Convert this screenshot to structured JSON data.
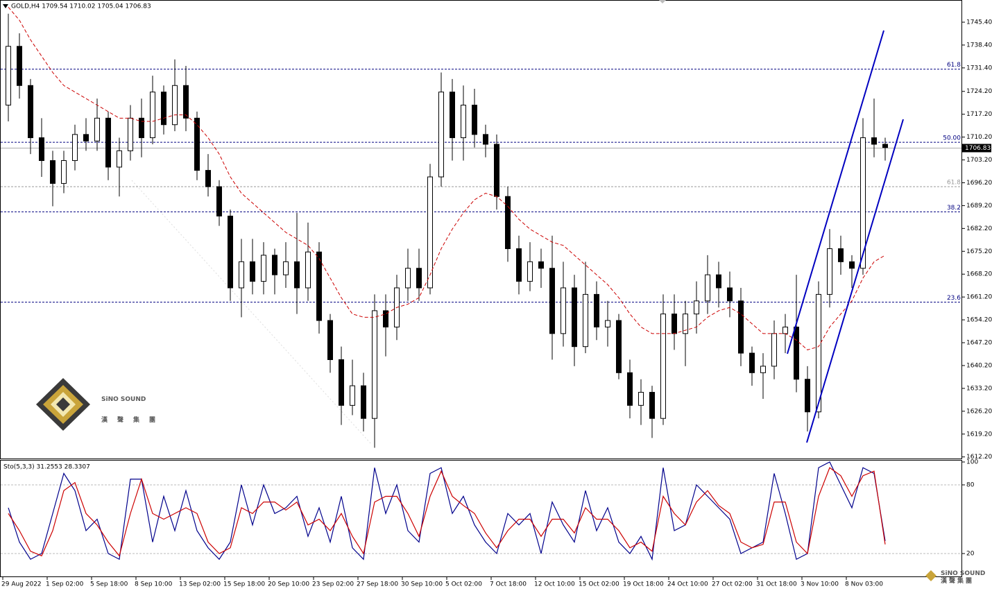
{
  "chart_data": [
    {
      "type": "candlestick",
      "title": "GOLD,H4  1709.54 1710.02 1705.04 1706.83",
      "x_labels": [
        {
          "value": 0,
          "label": "29 Aug 2022"
        },
        {
          "value": 4,
          "label": "1 Sep 02:00"
        },
        {
          "value": 8,
          "label": "5 Sep 18:00"
        },
        {
          "value": 12,
          "label": "8 Sep 10:00"
        },
        {
          "value": 16,
          "label": "13 Sep 02:00"
        },
        {
          "value": 20,
          "label": "15 Sep 18:00"
        },
        {
          "value": 24,
          "label": "20 Sep 10:00"
        },
        {
          "value": 28,
          "label": "23 Sep 02:00"
        },
        {
          "value": 32,
          "label": "27 Sep 18:00"
        },
        {
          "value": 36,
          "label": "30 Sep 10:00"
        },
        {
          "value": 40,
          "label": "5 Oct 02:00"
        },
        {
          "value": 44,
          "label": "7 Oct 18:00"
        },
        {
          "value": 48,
          "label": "12 Oct 10:00"
        },
        {
          "value": 52,
          "label": "15 Oct 02:00"
        },
        {
          "value": 56,
          "label": "19 Oct 18:00"
        },
        {
          "value": 60,
          "label": "24 Oct 10:00"
        },
        {
          "value": 64,
          "label": "27 Oct 02:00"
        },
        {
          "value": 68,
          "label": "31 Oct 18:00"
        },
        {
          "value": 72,
          "label": "3 Nov 10:00"
        },
        {
          "value": 76,
          "label": "8 Nov 03:00"
        }
      ],
      "ohlc": [
        [
          1720,
          1748,
          1715,
          1738
        ],
        [
          1738,
          1742,
          1722,
          1726
        ],
        [
          1726,
          1728,
          1705,
          1710
        ],
        [
          1710,
          1716,
          1698,
          1703
        ],
        [
          1703,
          1706,
          1689,
          1696
        ],
        [
          1696,
          1706,
          1693,
          1703
        ],
        [
          1703,
          1714,
          1700,
          1711
        ],
        [
          1711,
          1716,
          1706,
          1709
        ],
        [
          1709,
          1722,
          1706,
          1716
        ],
        [
          1716,
          1718,
          1697,
          1701
        ],
        [
          1701,
          1710,
          1692,
          1706
        ],
        [
          1706,
          1720,
          1703,
          1716
        ],
        [
          1716,
          1722,
          1704,
          1710
        ],
        [
          1710,
          1729,
          1708,
          1724
        ],
        [
          1724,
          1726,
          1711,
          1714
        ],
        [
          1714,
          1734,
          1712,
          1726
        ],
        [
          1726,
          1732,
          1712,
          1716
        ],
        [
          1716,
          1718,
          1697,
          1700
        ],
        [
          1700,
          1705,
          1692,
          1695
        ],
        [
          1695,
          1697,
          1683,
          1686
        ],
        [
          1686,
          1688,
          1660,
          1664
        ],
        [
          1664,
          1679,
          1655,
          1672
        ],
        [
          1672,
          1679,
          1662,
          1666
        ],
        [
          1666,
          1678,
          1662,
          1674
        ],
        [
          1674,
          1676,
          1662,
          1668
        ],
        [
          1668,
          1678,
          1664,
          1672
        ],
        [
          1672,
          1687,
          1656,
          1664
        ],
        [
          1664,
          1684,
          1660,
          1675
        ],
        [
          1675,
          1678,
          1650,
          1654
        ],
        [
          1654,
          1656,
          1638,
          1642
        ],
        [
          1642,
          1646,
          1622,
          1628
        ],
        [
          1628,
          1642,
          1625,
          1634
        ],
        [
          1634,
          1638,
          1620,
          1624
        ],
        [
          1624,
          1662,
          1615,
          1657
        ],
        [
          1657,
          1662,
          1643,
          1652
        ],
        [
          1652,
          1668,
          1648,
          1664
        ],
        [
          1664,
          1676,
          1660,
          1670
        ],
        [
          1670,
          1676,
          1660,
          1664
        ],
        [
          1664,
          1702,
          1662,
          1698
        ],
        [
          1698,
          1730,
          1695,
          1724
        ],
        [
          1724,
          1728,
          1703,
          1710
        ],
        [
          1710,
          1726,
          1703,
          1720
        ],
        [
          1720,
          1725,
          1707,
          1711
        ],
        [
          1711,
          1714,
          1704,
          1708
        ],
        [
          1708,
          1711,
          1688,
          1692
        ],
        [
          1692,
          1695,
          1672,
          1676
        ],
        [
          1676,
          1680,
          1662,
          1666
        ],
        [
          1666,
          1678,
          1663,
          1672
        ],
        [
          1672,
          1676,
          1664,
          1670
        ],
        [
          1670,
          1680,
          1642,
          1650
        ],
        [
          1650,
          1672,
          1646,
          1664
        ],
        [
          1664,
          1668,
          1640,
          1646
        ],
        [
          1646,
          1672,
          1644,
          1662
        ],
        [
          1662,
          1666,
          1648,
          1652
        ],
        [
          1652,
          1660,
          1646,
          1654
        ],
        [
          1654,
          1656,
          1636,
          1638
        ],
        [
          1638,
          1642,
          1624,
          1628
        ],
        [
          1628,
          1636,
          1622,
          1632
        ],
        [
          1632,
          1634,
          1618,
          1624
        ],
        [
          1624,
          1662,
          1622,
          1656
        ],
        [
          1656,
          1662,
          1645,
          1650
        ],
        [
          1650,
          1660,
          1640,
          1656
        ],
        [
          1656,
          1666,
          1650,
          1660
        ],
        [
          1660,
          1674,
          1656,
          1668
        ],
        [
          1668,
          1672,
          1658,
          1664
        ],
        [
          1664,
          1669,
          1655,
          1660
        ],
        [
          1660,
          1664,
          1640,
          1644
        ],
        [
          1644,
          1646,
          1634,
          1638
        ],
        [
          1638,
          1644,
          1630,
          1640
        ],
        [
          1640,
          1654,
          1636,
          1650
        ],
        [
          1650,
          1656,
          1644,
          1652
        ],
        [
          1652,
          1668,
          1632,
          1636
        ],
        [
          1636,
          1640,
          1620,
          1626
        ],
        [
          1626,
          1666,
          1624,
          1662
        ],
        [
          1662,
          1682,
          1658,
          1676
        ],
        [
          1676,
          1680,
          1668,
          1672
        ],
        [
          1672,
          1674,
          1664,
          1670
        ],
        [
          1670,
          1716,
          1668,
          1710
        ],
        [
          1710,
          1722,
          1704,
          1708
        ],
        [
          1708,
          1710,
          1703,
          1707
        ]
      ],
      "up_color": "#ffffff",
      "down_color": "#000000",
      "wick_color": "#000000",
      "ma": {
        "color": "#cc0000",
        "values": [
          1750,
          1746,
          1740,
          1735,
          1730,
          1726,
          1724,
          1722,
          1720,
          1718,
          1716,
          1716,
          1715,
          1715,
          1716,
          1717,
          1717,
          1714,
          1710,
          1705,
          1698,
          1693,
          1690,
          1687,
          1684,
          1681,
          1679,
          1677,
          1673,
          1667,
          1661,
          1656,
          1655,
          1655,
          1656,
          1658,
          1659,
          1661,
          1668,
          1676,
          1682,
          1687,
          1691,
          1693,
          1692,
          1689,
          1685,
          1682,
          1680,
          1678,
          1677,
          1674,
          1671,
          1668,
          1665,
          1661,
          1656,
          1652,
          1650,
          1650,
          1650,
          1651,
          1652,
          1655,
          1657,
          1658,
          1656,
          1653,
          1650,
          1650,
          1650,
          1648,
          1645,
          1646,
          1652,
          1656,
          1660,
          1667,
          1672,
          1674
        ]
      },
      "ylim": [
        1611.5,
        1752.2
      ],
      "yticks": [
        {
          "value": 1745.4,
          "label": "1745.40"
        },
        {
          "value": 1738.4,
          "label": "1738.40"
        },
        {
          "value": 1731.4,
          "label": "1731.40"
        },
        {
          "value": 1724.2,
          "label": "1724.20"
        },
        {
          "value": 1717.2,
          "label": "1717.20"
        },
        {
          "value": 1710.2,
          "label": "1710.20"
        },
        {
          "value": 1703.2,
          "label": "1703.20"
        },
        {
          "value": 1696.2,
          "label": "1696.20"
        },
        {
          "value": 1689.2,
          "label": "1689.20"
        },
        {
          "value": 1682.2,
          "label": "1682.20"
        },
        {
          "value": 1675.2,
          "label": "1675.20"
        },
        {
          "value": 1668.2,
          "label": "1668.20"
        },
        {
          "value": 1661.2,
          "label": "1661.20"
        },
        {
          "value": 1654.2,
          "label": "1654.20"
        },
        {
          "value": 1647.2,
          "label": "1647.20"
        },
        {
          "value": 1640.2,
          "label": "1640.20"
        },
        {
          "value": 1633.2,
          "label": "1633.20"
        },
        {
          "value": 1626.2,
          "label": "1626.20"
        },
        {
          "value": 1619.2,
          "label": "1619.20"
        },
        {
          "value": 1612.2,
          "label": "1612.20"
        }
      ],
      "levels": [
        {
          "value": 1731,
          "label": "61.8",
          "color": "#000080"
        },
        {
          "value": 1708.6,
          "label": "50.00",
          "color": "#000080"
        },
        {
          "value": 1695,
          "label": "61.8",
          "color": "#999999"
        },
        {
          "value": 1687.3,
          "label": "38.2",
          "color": "#000080"
        },
        {
          "value": 1659.6,
          "label": "23.6",
          "color": "#000080"
        }
      ],
      "last_price": 1706.83,
      "watermark": {
        "name": "SiNO SOUND",
        "chinese": "漢聲集團"
      }
    },
    {
      "type": "line",
      "title": "Sto(5,3,3) 31.2553 28.3307",
      "series": [
        {
          "color": "#00008b",
          "values": [
            60,
            30,
            15,
            20,
            55,
            90,
            75,
            40,
            50,
            20,
            15,
            85,
            85,
            30,
            70,
            40,
            75,
            40,
            25,
            15,
            30,
            80,
            45,
            80,
            55,
            60,
            70,
            35,
            60,
            30,
            70,
            25,
            15,
            95,
            55,
            80,
            40,
            30,
            90,
            95,
            55,
            70,
            45,
            30,
            20,
            55,
            45,
            55,
            20,
            65,
            45,
            30,
            75,
            40,
            60,
            30,
            20,
            35,
            15,
            95,
            40,
            45,
            80,
            70,
            60,
            50,
            20,
            25,
            30,
            90,
            55,
            15,
            20,
            95,
            100,
            80,
            60,
            95,
            90,
            31
          ]
        },
        {
          "color": "#cc0000",
          "values": [
            55,
            40,
            22,
            18,
            40,
            75,
            82,
            55,
            45,
            30,
            18,
            55,
            85,
            55,
            50,
            55,
            60,
            55,
            30,
            20,
            25,
            60,
            55,
            65,
            65,
            58,
            65,
            45,
            50,
            40,
            55,
            35,
            20,
            65,
            70,
            70,
            55,
            35,
            70,
            92,
            70,
            62,
            55,
            38,
            25,
            40,
            50,
            50,
            35,
            50,
            50,
            38,
            60,
            50,
            50,
            40,
            25,
            30,
            22,
            70,
            55,
            45,
            65,
            75,
            62,
            55,
            30,
            25,
            28,
            65,
            65,
            30,
            20,
            70,
            95,
            88,
            70,
            88,
            92,
            28
          ]
        }
      ],
      "ylim": [
        0,
        100
      ],
      "yticks": [
        20,
        80,
        100
      ]
    }
  ]
}
